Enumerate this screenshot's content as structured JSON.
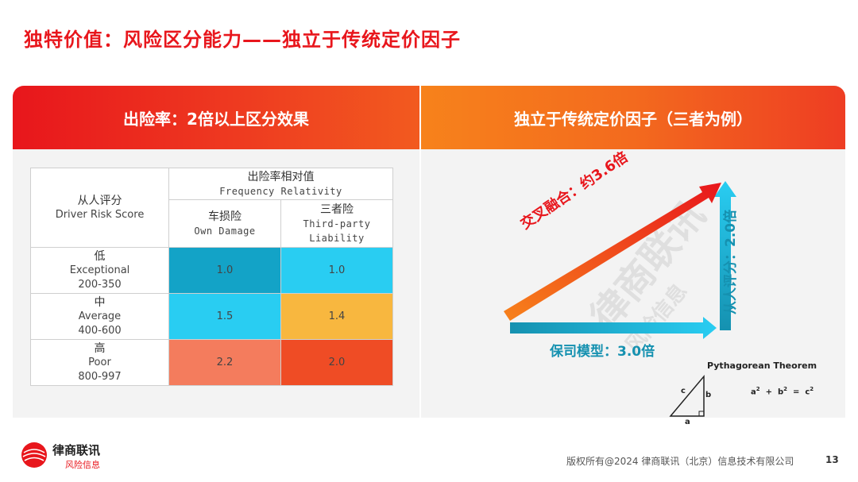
{
  "title": "独特价值：风险区分能力——独立于传统定价因子",
  "left_panel": {
    "header": "出险率：2倍以上区分效果",
    "table": {
      "row_header": {
        "cn": "从人评分",
        "en": "Driver Risk Score"
      },
      "group_header": {
        "cn": "出险率相对值",
        "en": "Frequency Relativity"
      },
      "col1": {
        "cn": "车损险",
        "en": "Own Damage"
      },
      "col2": {
        "cn": "三者险",
        "en_line1": "Third-party",
        "en_line2": "Liability"
      },
      "rows": [
        {
          "cn": "低",
          "en": "Exceptional",
          "range": "200-350",
          "v1": "1.0",
          "v2": "1.0"
        },
        {
          "cn": "中",
          "en": "Average",
          "range": "400-600",
          "v1": "1.5",
          "v2": "1.4"
        },
        {
          "cn": "高",
          "en": "Poor",
          "range": "800-997",
          "v1": "2.2",
          "v2": "2.0"
        }
      ]
    }
  },
  "right_panel": {
    "header": "独立于传统定价因子（三者为例）",
    "hypotenuse_label": "交叉融合：约3.6倍",
    "base_label": "保司模型：3.0倍",
    "vertical_label": "从人评分：2.0倍",
    "pythagorean": {
      "title": "Pythagorean Theorem",
      "formula_a": "a",
      "formula_b": "b",
      "formula_c": "c",
      "exp": "2",
      "plus": "+",
      "equals": "=",
      "side_a": "a",
      "side_b": "b",
      "side_c": "c"
    }
  },
  "watermark": {
    "main": "律商联讯",
    "sub": "风险信息"
  },
  "footer": {
    "brand": "律商联讯",
    "sub": "风险信息",
    "copyright": "版权所有@2024 律商联讯（北京）信息技术有限公司",
    "page": "13"
  },
  "colors": {
    "brand_red": "#e8161c",
    "teal": "#1591b0",
    "cell_dark_blue": "#13a3c7",
    "cell_light_blue": "#29cdf2",
    "cell_yellow": "#f8b73f",
    "cell_salmon": "#f47c5d",
    "cell_red": "#ef4c25"
  }
}
